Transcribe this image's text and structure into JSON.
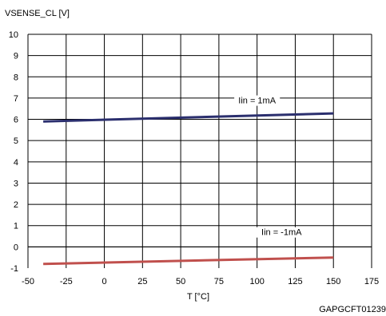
{
  "chart_data": {
    "type": "line",
    "ylabel": "VSENSE_CL [V]",
    "xlabel": "T [°C]",
    "xlim": [
      -50,
      175
    ],
    "ylim": [
      -1,
      10
    ],
    "x_ticks": [
      -50,
      -25,
      0,
      25,
      50,
      75,
      100,
      125,
      150,
      175
    ],
    "y_ticks": [
      -1,
      0,
      1,
      2,
      3,
      4,
      5,
      6,
      7,
      8,
      9,
      10
    ],
    "grid": true,
    "series": [
      {
        "name": "Iin = 1mA",
        "x": [
          -40,
          150
        ],
        "y": [
          5.9,
          6.28
        ],
        "color": "#2b2f6e"
      },
      {
        "name": "Iin = -1mA",
        "x": [
          -40,
          150
        ],
        "y": [
          -0.8,
          -0.5
        ],
        "color": "#c0504d"
      }
    ],
    "annotations": [
      {
        "text": "Iin = 1mA",
        "x": 100,
        "y": 6.75
      },
      {
        "text": "Iin = -1mA",
        "x": 116,
        "y": 0.55
      }
    ],
    "figure_code": "GAPGCFT01239"
  }
}
